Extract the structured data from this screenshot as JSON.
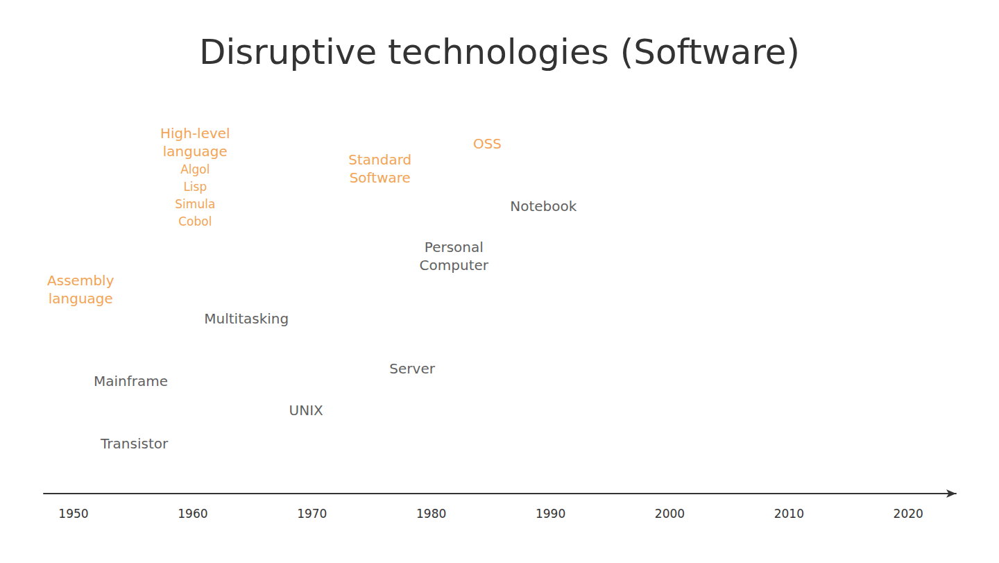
{
  "chart_data": {
    "type": "timeline",
    "title": "Disruptive technologies (Software)",
    "labels": [
      "Assembly language",
      "Mainframe",
      "Transistor",
      "High-level language",
      "Multitasking",
      "UNIX",
      "Standard Software",
      "Server",
      "Personal Computer",
      "OSS",
      "Notebook"
    ],
    "sublabels": [
      null,
      null,
      null,
      [
        "Algol",
        "Lisp",
        "Simula",
        "Cobol"
      ],
      null,
      null,
      null,
      null,
      null,
      null,
      null
    ],
    "x": [
      1950.6,
      1954.8,
      1955.1,
      1960.2,
      1964.5,
      1969.5,
      1975.7,
      1978.4,
      1981.9,
      1984.7,
      1989.4
    ],
    "values": [
      49,
      27,
      12,
      76,
      42,
      20,
      78,
      30,
      57,
      84,
      69
    ],
    "colors": [
      "#f08a24",
      "#333333",
      "#333333",
      "#f08a24",
      "#333333",
      "#333333",
      "#f08a24",
      "#333333",
      "#333333",
      "#f08a24",
      "#333333"
    ],
    "xlim": [
      1947.5,
      2024
    ],
    "xticks": [
      1950,
      1960,
      1970,
      1980,
      1990,
      2000,
      2010,
      2020
    ],
    "ylim": [
      0,
      100
    ],
    "tick_labels": "x",
    "grid": false
  }
}
